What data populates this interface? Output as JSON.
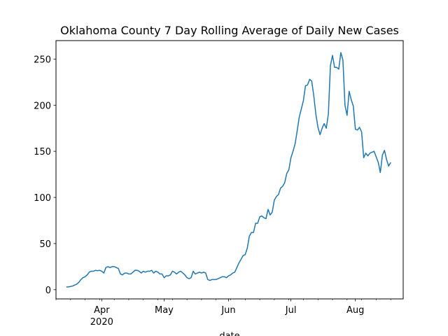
{
  "chart_data": {
    "type": "line",
    "title": "Oklahoma County 7 Day Rolling Average of Daily New Cases",
    "xlabel": "date",
    "ylabel": "",
    "x_start": "2020-03-15",
    "x_end": "2020-08-23",
    "xlim": [
      "2020-03-10",
      "2020-08-24"
    ],
    "ylim": [
      -10,
      270
    ],
    "yticks": [
      0,
      50,
      100,
      150,
      200,
      250
    ],
    "grid": false,
    "line_color": "#1f77b4",
    "x_major_ticks": [
      {
        "date": "2020-04-01",
        "label": "Apr",
        "sublabel": "2020"
      },
      {
        "date": "2020-05-01",
        "label": "May",
        "sublabel": ""
      },
      {
        "date": "2020-06-01",
        "label": "Jun",
        "sublabel": ""
      },
      {
        "date": "2020-07-01",
        "label": "Jul",
        "sublabel": ""
      },
      {
        "date": "2020-08-01",
        "label": "Aug",
        "sublabel": ""
      }
    ],
    "x_minor_ticks": [
      "2020-03-10",
      "2020-03-17",
      "2020-03-24",
      "2020-03-31",
      "2020-04-07",
      "2020-04-14",
      "2020-04-21",
      "2020-04-28",
      "2020-05-05",
      "2020-05-12",
      "2020-05-19",
      "2020-05-26",
      "2020-06-02",
      "2020-06-09",
      "2020-06-16",
      "2020-06-23",
      "2020-06-30",
      "2020-07-07",
      "2020-07-14",
      "2020-07-21",
      "2020-07-28",
      "2020-08-04",
      "2020-08-11",
      "2020-08-18"
    ],
    "series": [
      {
        "values": [
          3,
          3,
          3.5,
          4,
          5,
          6,
          8,
          11,
          13,
          14,
          16,
          19,
          20,
          20,
          21,
          20.5,
          21,
          20,
          18,
          24,
          25,
          24,
          25,
          25,
          24,
          23,
          17,
          16,
          18,
          18,
          17,
          17,
          19,
          21,
          21,
          20,
          18,
          20,
          19,
          20,
          20,
          21,
          18,
          20,
          19,
          17,
          17,
          13,
          15,
          15,
          16,
          20,
          19,
          17,
          19,
          20,
          18,
          16,
          13,
          12,
          13,
          20,
          17,
          18,
          19,
          18,
          19,
          18,
          11,
          10,
          11,
          11,
          11,
          12,
          13,
          14,
          14,
          13,
          15,
          16,
          18,
          19,
          24,
          29,
          33,
          37,
          38,
          45,
          58,
          62,
          62,
          72,
          72,
          79,
          80,
          78,
          77,
          87,
          81,
          84,
          97,
          101,
          103,
          110,
          112,
          116,
          126,
          130,
          143,
          150,
          158,
          172,
          187,
          196,
          205,
          221,
          222,
          228,
          226,
          210,
          190,
          176,
          168,
          175,
          180,
          175,
          190,
          243,
          254,
          241,
          241,
          239,
          257,
          249,
          200,
          189,
          215,
          206,
          199,
          174,
          173,
          176,
          171,
          143,
          148,
          145,
          148,
          149,
          150,
          144,
          138,
          127,
          146,
          151,
          141,
          134,
          138
        ]
      }
    ]
  }
}
